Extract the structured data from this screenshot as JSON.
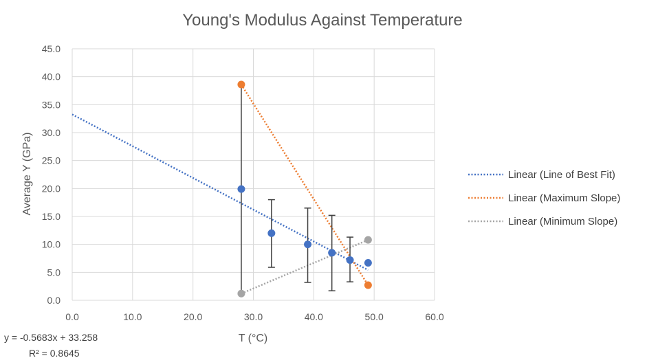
{
  "chart_data": {
    "type": "scatter",
    "title": "Young's Modulus Against Temperature",
    "xlabel": "T (°C)",
    "ylabel": "Average Y (GPa)",
    "xlim": [
      0,
      60
    ],
    "ylim": [
      0,
      45
    ],
    "x_ticks": [
      "0.0",
      "10.0",
      "20.0",
      "30.0",
      "40.0",
      "50.0",
      "60.0"
    ],
    "y_ticks": [
      "0.0",
      "5.0",
      "10.0",
      "15.0",
      "20.0",
      "25.0",
      "30.0",
      "35.0",
      "40.0",
      "45.0"
    ],
    "grid": true,
    "legend_position": "right",
    "series": [
      {
        "kind": "points",
        "color": "#4472C4",
        "points": [
          {
            "x": 28,
            "y": 19.9,
            "err_low": 1.2,
            "err_high": 38.6
          },
          {
            "x": 33,
            "y": 12.0,
            "err_low": 5.9,
            "err_high": 18.0
          },
          {
            "x": 39,
            "y": 10.0,
            "err_low": 3.2,
            "err_high": 16.5
          },
          {
            "x": 43,
            "y": 8.5,
            "err_low": 1.7,
            "err_high": 15.2
          },
          {
            "x": 46,
            "y": 7.2,
            "err_low": 3.3,
            "err_high": 11.3
          },
          {
            "x": 49,
            "y": 6.7,
            "err_low": 6.7,
            "err_high": 6.7
          }
        ]
      },
      {
        "kind": "points",
        "color": "#ED7D31",
        "points": [
          {
            "x": 28,
            "y": 38.6
          },
          {
            "x": 49,
            "y": 2.7
          }
        ]
      },
      {
        "kind": "points",
        "color": "#A5A5A5",
        "points": [
          {
            "x": 28,
            "y": 1.2
          },
          {
            "x": 49,
            "y": 10.8
          }
        ]
      }
    ],
    "trendlines": [
      {
        "name": "Linear (Line of Best Fit)",
        "color": "#4472C4",
        "x": [
          0,
          49
        ],
        "y": [
          33.258,
          5.41
        ]
      },
      {
        "name": "Linear (Maximum Slope)",
        "color": "#ED7D31",
        "x": [
          28,
          49
        ],
        "y": [
          38.6,
          2.7
        ]
      },
      {
        "name": "Linear (Minimum Slope)",
        "color": "#A5A5A5",
        "x": [
          28,
          49
        ],
        "y": [
          1.2,
          10.8
        ]
      }
    ],
    "annotations": {
      "equation": "y = -0.5683x + 33.258",
      "r_squared": "R² = 0.8645"
    }
  }
}
